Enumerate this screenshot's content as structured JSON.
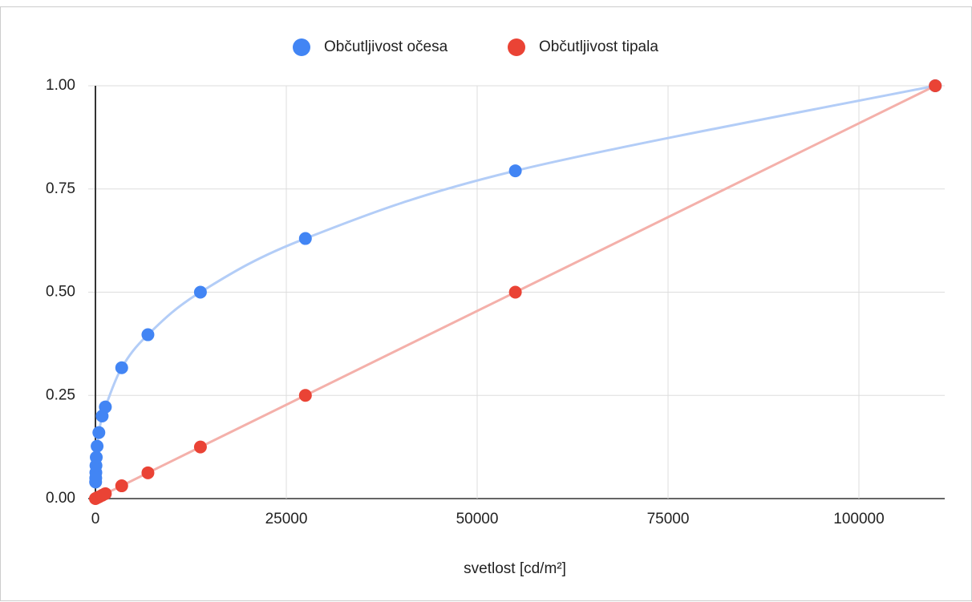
{
  "chart_data": {
    "type": "scatter",
    "x_label": "svetlost [cd/m²]",
    "series": [
      {
        "name": "Občutljivost očesa",
        "color": "#4285f4",
        "line_color": "#b3cdf7",
        "x": [
          25,
          40,
          55,
          70,
          110,
          220,
          450,
          880,
          1300,
          3440,
          6875,
          13750,
          27500,
          55000,
          110000
        ],
        "values": [
          0.04,
          0.05,
          0.063,
          0.08,
          0.1,
          0.127,
          0.16,
          0.2,
          0.222,
          0.317,
          0.397,
          0.5,
          0.63,
          0.794,
          1.0
        ]
      },
      {
        "name": "Občutljivost tipala",
        "color": "#ea4335",
        "line_color": "#f4b0aa",
        "x": [
          0,
          200,
          450,
          880,
          1300,
          3440,
          6875,
          13750,
          27500,
          55000,
          110000
        ],
        "values": [
          0,
          0.002,
          0.004,
          0.008,
          0.012,
          0.031,
          0.0625,
          0.125,
          0.25,
          0.5,
          1.0
        ]
      }
    ],
    "xlim": [
      -945,
      111240
    ],
    "xticks": [
      0,
      25000,
      50000,
      75000,
      100000
    ],
    "ylim": [
      0,
      1
    ],
    "yticks": [
      {
        "value": 0,
        "label": "0.00"
      },
      {
        "value": 0.25,
        "label": "0.25"
      },
      {
        "value": 0.5,
        "label": "0.50"
      },
      {
        "value": 0.75,
        "label": "0.75"
      },
      {
        "value": 1,
        "label": "1.00"
      }
    ],
    "grid": true,
    "legend": "top",
    "smooth": true
  }
}
